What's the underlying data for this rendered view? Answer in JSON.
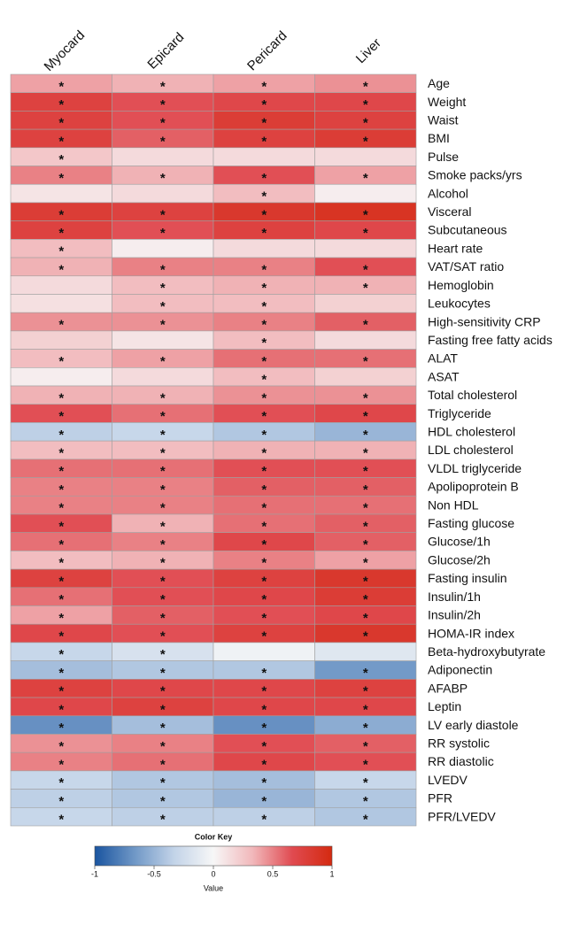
{
  "chart_data": {
    "type": "heatmap",
    "columns": [
      "Myocard",
      "Epicard",
      "Pericard",
      "Liver"
    ],
    "rows": [
      "Age",
      "Weight",
      "Waist",
      "BMI",
      "Pulse",
      "Smoke packs/yrs",
      "Alcohol",
      "Visceral",
      "Subcutaneous",
      "Heart rate",
      "VAT/SAT ratio",
      "Hemoglobin",
      "Leukocytes",
      "High-sensitivity CRP",
      "Fasting free fatty acids",
      "ALAT",
      "ASAT",
      "Total cholesterol",
      "Triglyceride",
      "HDL cholesterol",
      "LDL cholesterol",
      "VLDL triglyceride",
      "Apolipoprotein B",
      "Non HDL",
      "Fasting glucose",
      "Glucose/1h",
      "Glucose/2h",
      "Fasting insulin",
      "Insulin/1h",
      "Insulin/2h",
      "HOMA-IR index",
      "Beta-hydroxybutyrate",
      "Adiponectin",
      "AFABP",
      "Leptin",
      "LV early diastole",
      "RR systolic",
      "RR diastolic",
      "LVEDV",
      "PFR",
      "PFR/LVEDV"
    ],
    "values": [
      [
        0.4,
        0.35,
        0.4,
        0.45
      ],
      [
        0.75,
        0.65,
        0.7,
        0.7
      ],
      [
        0.75,
        0.65,
        0.8,
        0.75
      ],
      [
        0.75,
        0.6,
        0.75,
        0.8
      ],
      [
        0.25,
        0.15,
        0.15,
        0.15
      ],
      [
        0.5,
        0.35,
        0.65,
        0.4
      ],
      [
        0.1,
        0.15,
        0.3,
        0.05
      ],
      [
        0.8,
        0.75,
        0.85,
        0.9
      ],
      [
        0.75,
        0.65,
        0.75,
        0.7
      ],
      [
        0.3,
        0.05,
        0.15,
        0.15
      ],
      [
        0.35,
        0.5,
        0.5,
        0.65
      ],
      [
        0.15,
        0.3,
        0.35,
        0.35
      ],
      [
        0.12,
        0.3,
        0.3,
        0.2
      ],
      [
        0.45,
        0.45,
        0.5,
        0.6
      ],
      [
        0.2,
        0.1,
        0.3,
        0.15
      ],
      [
        0.3,
        0.4,
        0.55,
        0.55
      ],
      [
        0.05,
        0.15,
        0.3,
        0.2
      ],
      [
        0.35,
        0.35,
        0.45,
        0.45
      ],
      [
        0.65,
        0.55,
        0.65,
        0.7
      ],
      [
        -0.35,
        -0.3,
        -0.4,
        -0.5
      ],
      [
        0.3,
        0.3,
        0.35,
        0.35
      ],
      [
        0.55,
        0.55,
        0.65,
        0.65
      ],
      [
        0.5,
        0.5,
        0.6,
        0.6
      ],
      [
        0.5,
        0.5,
        0.55,
        0.55
      ],
      [
        0.65,
        0.35,
        0.55,
        0.6
      ],
      [
        0.55,
        0.5,
        0.7,
        0.6
      ],
      [
        0.3,
        0.35,
        0.5,
        0.4
      ],
      [
        0.75,
        0.65,
        0.75,
        0.85
      ],
      [
        0.55,
        0.65,
        0.7,
        0.8
      ],
      [
        0.4,
        0.6,
        0.65,
        0.7
      ],
      [
        0.7,
        0.65,
        0.75,
        0.85
      ],
      [
        -0.3,
        -0.2,
        -0.05,
        -0.15
      ],
      [
        -0.45,
        -0.4,
        -0.4,
        -0.65
      ],
      [
        0.75,
        0.7,
        0.7,
        0.75
      ],
      [
        0.7,
        0.75,
        0.7,
        0.7
      ],
      [
        -0.7,
        -0.45,
        -0.7,
        -0.55
      ],
      [
        0.45,
        0.5,
        0.65,
        0.6
      ],
      [
        0.5,
        0.55,
        0.7,
        0.65
      ],
      [
        -0.3,
        -0.4,
        -0.45,
        -0.3
      ],
      [
        -0.35,
        -0.4,
        -0.5,
        -0.4
      ],
      [
        -0.3,
        -0.35,
        -0.35,
        -0.4
      ]
    ],
    "labels": [
      [
        "*",
        "*",
        "*",
        "*"
      ],
      [
        "*",
        "*",
        "*",
        "*"
      ],
      [
        "*",
        "*",
        "*",
        "*"
      ],
      [
        "*",
        "*",
        "*",
        "*"
      ],
      [
        "*",
        null,
        null,
        null
      ],
      [
        "*",
        "*",
        "*",
        "*"
      ],
      [
        null,
        null,
        "*",
        null
      ],
      [
        "*",
        "*",
        "*",
        "*"
      ],
      [
        "*",
        "*",
        "*",
        "*"
      ],
      [
        "*",
        null,
        null,
        null
      ],
      [
        "*",
        "*",
        "*",
        "*"
      ],
      [
        null,
        "*",
        "*",
        "*"
      ],
      [
        null,
        "*",
        "*",
        null
      ],
      [
        "*",
        "*",
        "*",
        "*"
      ],
      [
        null,
        null,
        "*",
        null
      ],
      [
        "*",
        "*",
        "*",
        "*"
      ],
      [
        null,
        null,
        "*",
        null
      ],
      [
        "*",
        "*",
        "*",
        "*"
      ],
      [
        "*",
        "*",
        "*",
        "*"
      ],
      [
        "*",
        "*",
        "*",
        "*"
      ],
      [
        "*",
        "*",
        "*",
        "*"
      ],
      [
        "*",
        "*",
        "*",
        "*"
      ],
      [
        "*",
        "*",
        "*",
        "*"
      ],
      [
        "*",
        "*",
        "*",
        "*"
      ],
      [
        "*",
        "*",
        "*",
        "*"
      ],
      [
        "*",
        "*",
        "*",
        "*"
      ],
      [
        "*",
        "*",
        "*",
        "*"
      ],
      [
        "*",
        "*",
        "*",
        "*"
      ],
      [
        "*",
        "*",
        "*",
        "*"
      ],
      [
        "*",
        "*",
        "*",
        "*"
      ],
      [
        "*",
        "*",
        "*",
        "*"
      ],
      [
        "*",
        "*",
        null,
        null
      ],
      [
        "*",
        "*",
        "*",
        "*"
      ],
      [
        "*",
        "*",
        "*",
        "*"
      ],
      [
        "*",
        "*",
        "*",
        "*"
      ],
      [
        "*",
        "*",
        "*",
        "*"
      ],
      [
        "*",
        "*",
        "*",
        "*"
      ],
      [
        "*",
        "*",
        "*",
        "*"
      ],
      [
        "*",
        "*",
        "*",
        "*"
      ],
      [
        "*",
        "*",
        "*",
        "*"
      ],
      [
        "*",
        "*",
        "*",
        "*"
      ]
    ],
    "colormap": [
      "#1a55a0",
      "#6f97c6",
      "#c2d3e8",
      "#f7f7f7",
      "#f1b7ba",
      "#e04a50",
      "#d42a10"
    ],
    "colorbar": {
      "title": "Color Key",
      "xlabel": "Value",
      "lim": [
        -1,
        1
      ],
      "ticks": [
        -1,
        -0.5,
        0,
        0.5,
        1
      ]
    }
  }
}
